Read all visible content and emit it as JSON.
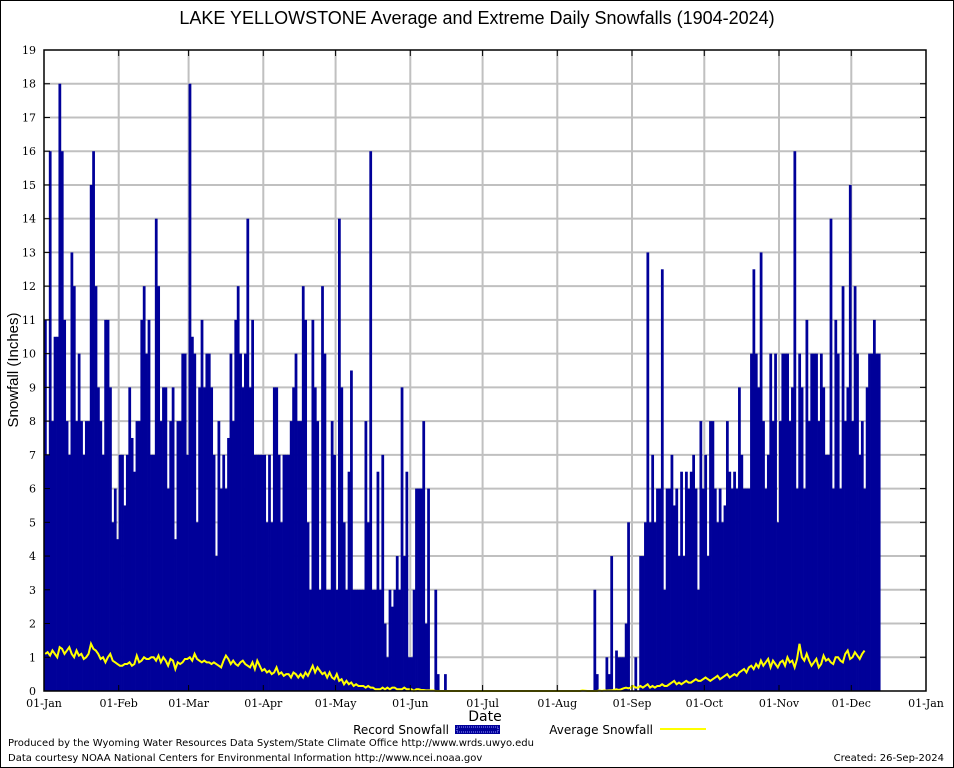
{
  "chart_data": {
    "type": "bar",
    "title": "LAKE YELLOWSTONE Average and Extreme Daily Snowfalls (1904-2024)",
    "xlabel": "Date",
    "ylabel": "Snowfall (Inches)",
    "ylim": [
      0,
      19
    ],
    "yticks": [
      "0",
      "1",
      "2",
      "3",
      "4",
      "5",
      "6",
      "7",
      "8",
      "9",
      "10",
      "11",
      "12",
      "13",
      "14",
      "15",
      "16",
      "17",
      "18",
      "19"
    ],
    "xticks": [
      "01-Jan",
      "01-Feb",
      "01-Mar",
      "01-Apr",
      "01-May",
      "01-Jun",
      "01-Jul",
      "01-Aug",
      "01-Sep",
      "01-Oct",
      "01-Nov",
      "01-Dec",
      "01-Jan"
    ],
    "xtick_days": [
      0,
      31,
      60,
      91,
      121,
      152,
      182,
      213,
      244,
      274,
      305,
      335,
      366
    ],
    "grid": true,
    "legend": {
      "placement": "bottom",
      "entries": [
        {
          "label": "Record Snowfall",
          "style": "bar",
          "color": "#000099"
        },
        {
          "label": "Average Snowfall",
          "style": "line",
          "color": "#ffff00"
        }
      ]
    },
    "series": [
      {
        "name": "Record Snowfall",
        "color": "#000099",
        "values": [
          11,
          7,
          16,
          8,
          10.5,
          10.5,
          18,
          16,
          11,
          8,
          7,
          13,
          12,
          8,
          10,
          8,
          7,
          8,
          8,
          15,
          16,
          12,
          9,
          8,
          7,
          11,
          11,
          9,
          5,
          6,
          4.5,
          7,
          7,
          5.5,
          7,
          9,
          7.5,
          6.5,
          8,
          8,
          11,
          12,
          10,
          11,
          7,
          7,
          14,
          12,
          8,
          9,
          9,
          6,
          8,
          9,
          4.5,
          8,
          8,
          10,
          10,
          7,
          18,
          10.5,
          10,
          5,
          9,
          11,
          9,
          10,
          10,
          9,
          7,
          4,
          8,
          6,
          7,
          6,
          7.5,
          10,
          8,
          11,
          12,
          10,
          9,
          10,
          14,
          9,
          11,
          7,
          7,
          7,
          7,
          7,
          5,
          7,
          5,
          9,
          9,
          7,
          5,
          7,
          7,
          7,
          8,
          9,
          10,
          8,
          8,
          12,
          11,
          5,
          3,
          11,
          9,
          8,
          3,
          12,
          10,
          3,
          3,
          8,
          7,
          3,
          14,
          9,
          5,
          3,
          6.5,
          9.5,
          3,
          3,
          3,
          3,
          3,
          8,
          5,
          16,
          3,
          3,
          6.5,
          3,
          7,
          2,
          1,
          3,
          2.5,
          3,
          4,
          3,
          9,
          4,
          6.5,
          1,
          1,
          3,
          6,
          6,
          6,
          8,
          2,
          6,
          0,
          0,
          3,
          0.5,
          0,
          0,
          0.5,
          0,
          0,
          0,
          0,
          0,
          0,
          0,
          0,
          0,
          0,
          0,
          0,
          0,
          0,
          0,
          0,
          0,
          0,
          0,
          0,
          0,
          0,
          0,
          0,
          0,
          0,
          0,
          0,
          0,
          0,
          0,
          0,
          0,
          0,
          0,
          0,
          0,
          0,
          0,
          0,
          0,
          0,
          0,
          0,
          0,
          0,
          0,
          0,
          0,
          0,
          0,
          0,
          0,
          0,
          0,
          0,
          0,
          0,
          0,
          0,
          0,
          3,
          0.5,
          0,
          0,
          0,
          1,
          0.5,
          4,
          0,
          1.2,
          1,
          1,
          1,
          2,
          5,
          0,
          0,
          1,
          0,
          4,
          4,
          5,
          13,
          5,
          7,
          5,
          6,
          6,
          12.5,
          3,
          6,
          6,
          7,
          5.5,
          6,
          4,
          6.5,
          4,
          6.5,
          6,
          6.5,
          7,
          6,
          3,
          8,
          6,
          7,
          4,
          8,
          8,
          6,
          5,
          6,
          5,
          5.5,
          8,
          6.5,
          6,
          6.5,
          6,
          9,
          7,
          6,
          6,
          6,
          10,
          12.5,
          10,
          9,
          13,
          8,
          6,
          7,
          10,
          8,
          10,
          5,
          8,
          10,
          10,
          10,
          8,
          9,
          16,
          6,
          10,
          9,
          6,
          11,
          8,
          10,
          10,
          10,
          8,
          10,
          9,
          7,
          7,
          14,
          6,
          11,
          10,
          6,
          12,
          8,
          9,
          15,
          8,
          12,
          10,
          7,
          8,
          6,
          9,
          10,
          10,
          11,
          10,
          10
        ]
      },
      {
        "name": "Average Snowfall",
        "color": "#ffff00",
        "values": [
          1.1,
          1.15,
          1.05,
          1.2,
          1.1,
          1.0,
          1.3,
          1.25,
          1.1,
          1.2,
          1.3,
          1.1,
          1.0,
          1.2,
          1.05,
          1.1,
          0.95,
          1.0,
          1.1,
          1.4,
          1.25,
          1.2,
          1.1,
          0.95,
          1.0,
          0.85,
          1.0,
          1.1,
          0.9,
          0.85,
          0.8,
          0.75,
          0.75,
          0.8,
          0.8,
          0.85,
          0.75,
          0.8,
          1.05,
          0.85,
          0.9,
          1.0,
          0.95,
          0.95,
          1.0,
          1.0,
          0.9,
          1.05,
          0.85,
          1.0,
          0.9,
          0.75,
          0.95,
          0.9,
          0.65,
          0.85,
          0.8,
          0.85,
          0.95,
          0.95,
          1.0,
          0.9,
          1.1,
          0.95,
          0.9,
          0.85,
          0.9,
          0.85,
          0.85,
          0.8,
          0.85,
          0.8,
          0.75,
          0.7,
          0.9,
          1.05,
          0.95,
          0.8,
          0.9,
          0.8,
          0.75,
          0.85,
          0.9,
          0.8,
          0.75,
          0.7,
          0.85,
          0.65,
          0.9,
          0.75,
          0.6,
          0.65,
          0.55,
          0.6,
          0.5,
          0.55,
          0.7,
          0.5,
          0.55,
          0.45,
          0.5,
          0.5,
          0.4,
          0.55,
          0.5,
          0.4,
          0.5,
          0.4,
          0.55,
          0.45,
          0.6,
          0.75,
          0.55,
          0.7,
          0.6,
          0.5,
          0.55,
          0.4,
          0.55,
          0.4,
          0.35,
          0.5,
          0.3,
          0.35,
          0.2,
          0.3,
          0.2,
          0.25,
          0.15,
          0.2,
          0.15,
          0.15,
          0.15,
          0.1,
          0.15,
          0.1,
          0.1,
          0.05,
          0.05,
          0.05,
          0.1,
          0.05,
          0.1,
          0.05,
          0.1,
          0.1,
          0.05,
          0.05,
          0.05,
          0.1,
          0.05,
          0.05,
          0.05,
          0.0,
          0.05,
          0.05,
          0.03,
          0.03,
          0.02,
          0.02,
          0.02,
          0.02,
          0.0,
          0,
          0,
          0,
          0,
          0,
          0,
          0,
          0,
          0,
          0,
          0,
          0,
          0,
          0,
          0,
          0,
          0,
          0,
          0,
          0,
          0,
          0,
          0,
          0,
          0,
          0,
          0,
          0,
          0,
          0,
          0,
          0,
          0,
          0,
          0,
          0,
          0,
          0,
          0,
          0,
          0,
          0,
          0,
          0,
          0,
          0,
          0,
          0,
          0,
          0,
          0,
          0,
          0,
          0,
          0,
          0,
          0,
          0,
          0,
          0,
          0.02,
          0.01,
          0,
          0,
          0,
          0,
          0,
          0.02,
          0,
          0.02,
          0.01,
          0.02,
          0.02,
          0.03,
          0.05,
          0.03,
          0.05,
          0.08,
          0.1,
          0.08,
          0.1,
          0.15,
          0.1,
          0.1,
          0.15,
          0.1,
          0.15,
          0.2,
          0.1,
          0.15,
          0.1,
          0.15,
          0.15,
          0.2,
          0.15,
          0.15,
          0.2,
          0.25,
          0.3,
          0.2,
          0.25,
          0.2,
          0.25,
          0.3,
          0.25,
          0.25,
          0.3,
          0.35,
          0.3,
          0.3,
          0.35,
          0.4,
          0.35,
          0.3,
          0.35,
          0.4,
          0.45,
          0.35,
          0.4,
          0.45,
          0.5,
          0.4,
          0.45,
          0.5,
          0.45,
          0.55,
          0.6,
          0.65,
          0.55,
          0.7,
          0.75,
          0.65,
          0.8,
          0.7,
          0.9,
          0.75,
          0.85,
          0.95,
          0.7,
          0.9,
          0.8,
          0.7,
          0.85,
          0.9,
          0.75,
          1.0,
          0.85,
          0.9,
          0.7,
          0.95,
          1.4,
          1.0,
          0.9,
          1.1,
          0.9,
          0.75,
          0.85,
          0.95,
          0.7,
          0.8,
          1.05,
          0.9,
          0.95,
          0.85,
          0.8,
          1.0,
          1.0,
          0.9,
          0.85,
          1.1,
          1.2,
          0.95,
          1.0,
          1.15,
          1.05,
          0.95,
          1.1,
          1.2
        ]
      }
    ]
  },
  "footer": {
    "produced_by": "Produced by the Wyoming Water Resources Data System/State Climate Office http://www.wrds.uwyo.edu",
    "courtesy": "Data courtesy NOAA National Centers for Environmental Information http://www.ncei.noaa.gov",
    "created": "Created: 26-Sep-2024"
  }
}
